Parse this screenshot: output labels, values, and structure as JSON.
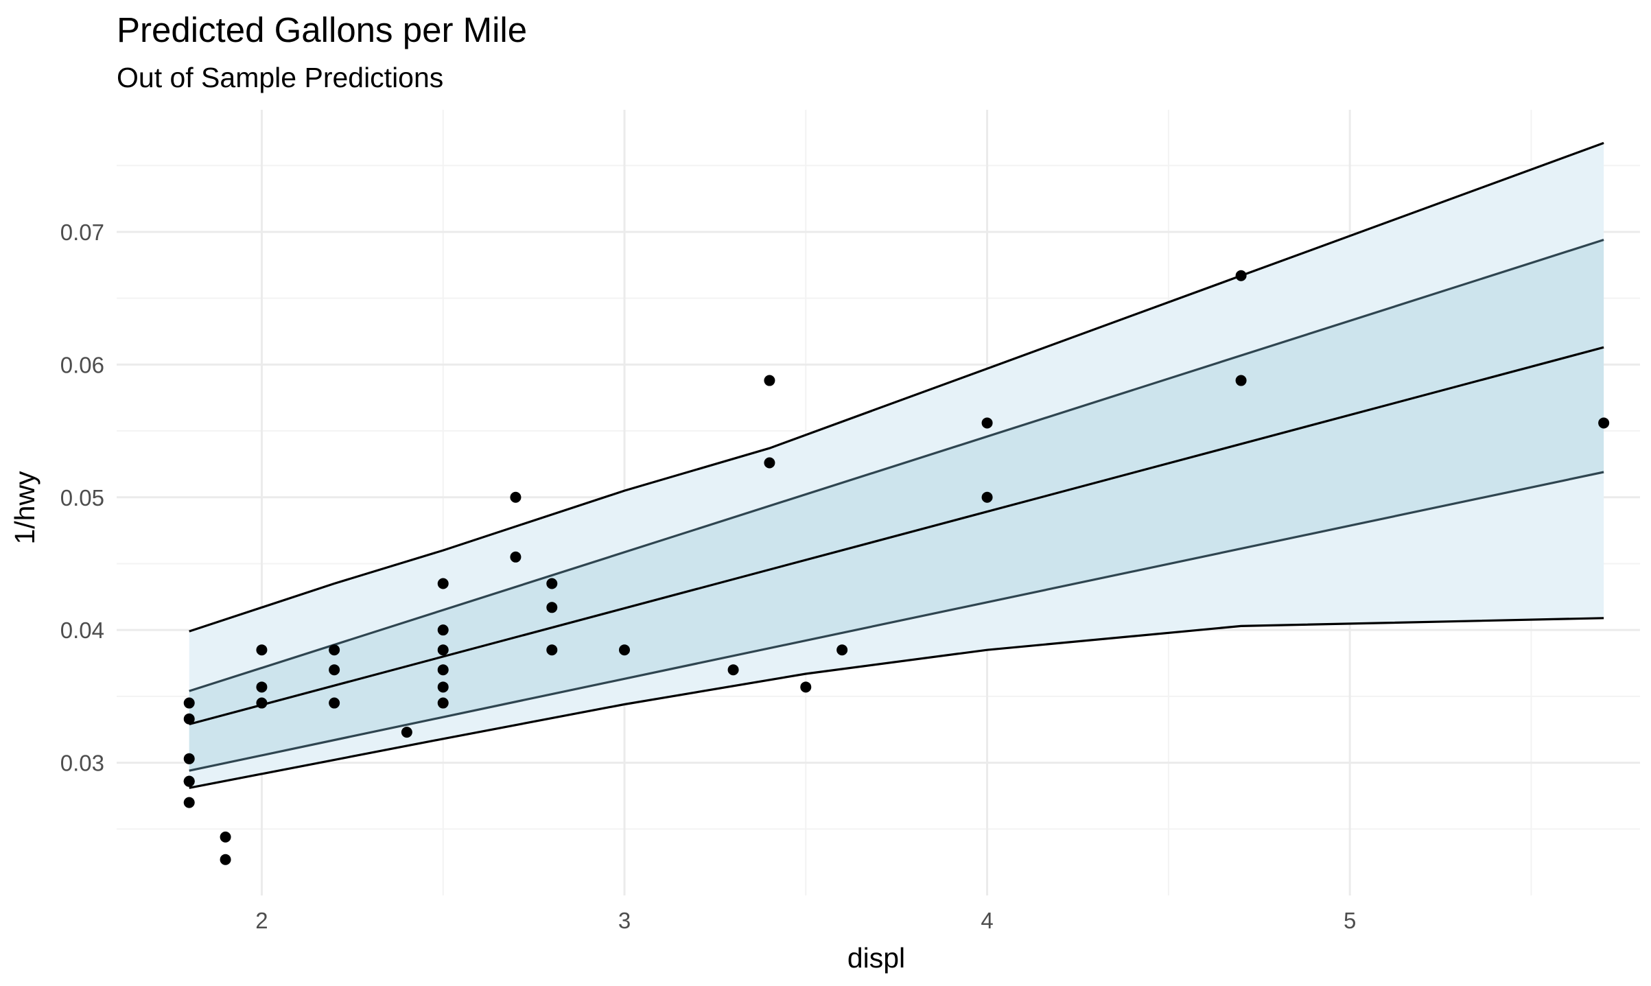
{
  "chart_data": {
    "type": "scatter",
    "title": "Predicted Gallons per Mile",
    "subtitle": "Out of Sample Predictions",
    "xlabel": "displ",
    "ylabel": "1/hwy",
    "xlim": [
      1.6,
      5.8
    ],
    "ylim": [
      0.02,
      0.0792
    ],
    "x_ticks": [
      2,
      3,
      4,
      5
    ],
    "x_tick_labels": [
      "2",
      "3",
      "4",
      "5"
    ],
    "y_ticks": [
      0.03,
      0.04,
      0.05,
      0.06,
      0.07
    ],
    "y_tick_labels": [
      "0.03",
      "0.04",
      "0.05",
      "0.06",
      "0.07"
    ],
    "grid": true,
    "colors": {
      "outer_band": "#e6f2f8",
      "inner_band": "#cde4ed",
      "outer_line": "#000000",
      "inner_line": "#2f4550",
      "fit_line": "#000000",
      "points": "#000000",
      "grid_major": "#ebebeb",
      "grid_minor": "#f3f3f3"
    },
    "bands": {
      "outer_upper": {
        "x": [
          1.8,
          2.0,
          2.2,
          2.5,
          3.0,
          3.4,
          4.0,
          4.7,
          5.7
        ],
        "y": [
          0.0399,
          0.0417,
          0.0435,
          0.046,
          0.0505,
          0.0537,
          0.0597,
          0.0667,
          0.0767
        ]
      },
      "inner_upper": {
        "x": [
          1.8,
          5.7
        ],
        "y": [
          0.0354,
          0.0694
        ]
      },
      "fit": {
        "x": [
          1.8,
          5.7
        ],
        "y": [
          0.0329,
          0.0613
        ]
      },
      "inner_lower": {
        "x": [
          1.8,
          5.7
        ],
        "y": [
          0.0294,
          0.0519
        ]
      },
      "outer_lower": {
        "x": [
          1.8,
          2.5,
          3.0,
          3.5,
          4.0,
          4.7,
          5.7
        ],
        "y": [
          0.0281,
          0.0318,
          0.0344,
          0.0367,
          0.0385,
          0.0403,
          0.0409
        ]
      }
    },
    "points": [
      {
        "x": 1.8,
        "y": 0.0345
      },
      {
        "x": 1.8,
        "y": 0.0333
      },
      {
        "x": 1.8,
        "y": 0.0303
      },
      {
        "x": 1.8,
        "y": 0.0286
      },
      {
        "x": 1.8,
        "y": 0.0286
      },
      {
        "x": 1.8,
        "y": 0.027
      },
      {
        "x": 1.9,
        "y": 0.0244
      },
      {
        "x": 1.9,
        "y": 0.0227
      },
      {
        "x": 2.0,
        "y": 0.0385
      },
      {
        "x": 2.0,
        "y": 0.0357
      },
      {
        "x": 2.0,
        "y": 0.0345
      },
      {
        "x": 2.2,
        "y": 0.0385
      },
      {
        "x": 2.2,
        "y": 0.037
      },
      {
        "x": 2.2,
        "y": 0.0345
      },
      {
        "x": 2.4,
        "y": 0.0323
      },
      {
        "x": 2.5,
        "y": 0.0435
      },
      {
        "x": 2.5,
        "y": 0.04
      },
      {
        "x": 2.5,
        "y": 0.0385
      },
      {
        "x": 2.5,
        "y": 0.037
      },
      {
        "x": 2.5,
        "y": 0.0357
      },
      {
        "x": 2.5,
        "y": 0.0345
      },
      {
        "x": 2.7,
        "y": 0.05
      },
      {
        "x": 2.7,
        "y": 0.0455
      },
      {
        "x": 2.8,
        "y": 0.0435
      },
      {
        "x": 2.8,
        "y": 0.0417
      },
      {
        "x": 2.8,
        "y": 0.0385
      },
      {
        "x": 3.0,
        "y": 0.0385
      },
      {
        "x": 3.3,
        "y": 0.037
      },
      {
        "x": 3.4,
        "y": 0.0588
      },
      {
        "x": 3.4,
        "y": 0.0526
      },
      {
        "x": 3.5,
        "y": 0.0357
      },
      {
        "x": 3.6,
        "y": 0.0385
      },
      {
        "x": 4.0,
        "y": 0.0556
      },
      {
        "x": 4.0,
        "y": 0.05
      },
      {
        "x": 4.7,
        "y": 0.0667
      },
      {
        "x": 4.7,
        "y": 0.0588
      },
      {
        "x": 5.7,
        "y": 0.0556
      }
    ]
  }
}
